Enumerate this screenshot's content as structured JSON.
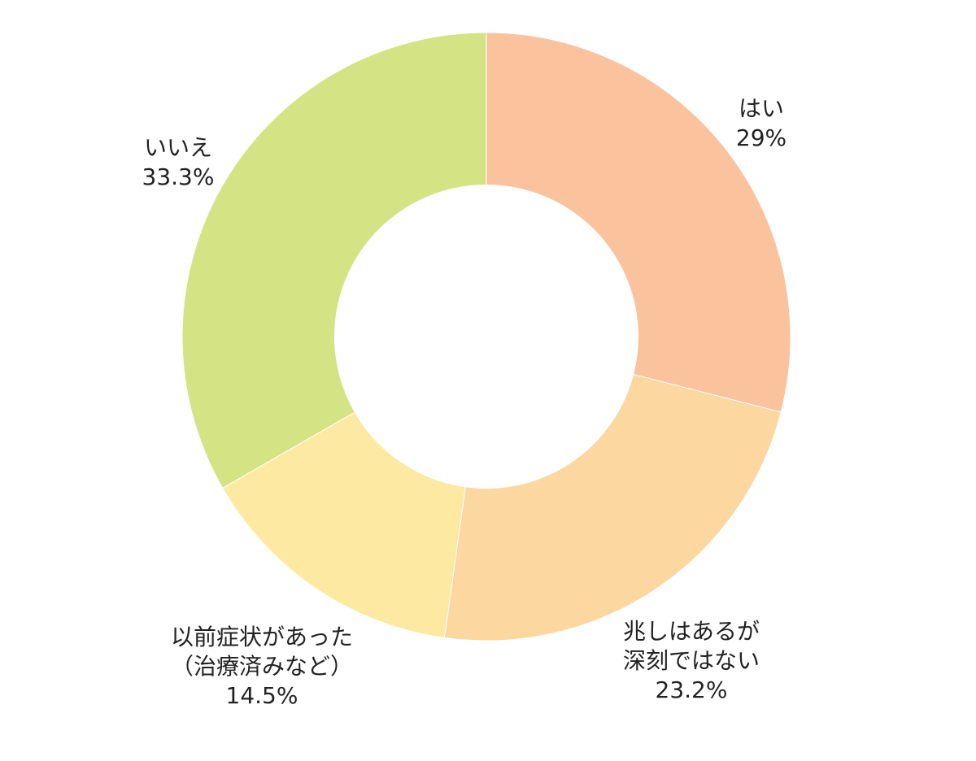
{
  "chart_data": {
    "type": "pie",
    "variant": "donut",
    "start_angle": "12 o'clock",
    "direction": "clockwise",
    "legend": "none",
    "slices": [
      {
        "label_lines": [
          "はい"
        ],
        "value": 29,
        "value_label": "29%",
        "color": "#fbc29e"
      },
      {
        "label_lines": [
          "兆しはあるが",
          "深刻ではない"
        ],
        "value": 23.2,
        "value_label": "23.2%",
        "color": "#fcd79f"
      },
      {
        "label_lines": [
          "以前症状があった",
          "（治療済みなど）"
        ],
        "value": 14.5,
        "value_label": "14.5%",
        "color": "#fde9a2"
      },
      {
        "label_lines": [
          "いいえ"
        ],
        "value": 33.3,
        "value_label": "33.3%",
        "color": "#d4e484"
      }
    ]
  }
}
